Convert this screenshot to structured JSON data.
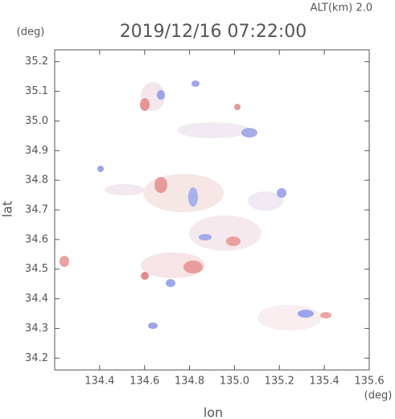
{
  "chart_data": {
    "type": "map",
    "title": "2019/12/16 07:22:00",
    "subtitle": "ALT(km) 2.0",
    "x_label": "lon",
    "y_label": "lat",
    "x_unit": "(deg)",
    "y_unit": "(deg)",
    "xlim": [
      134.2,
      135.6
    ],
    "ylim": [
      34.16,
      35.24
    ],
    "xticks": [
      134.4,
      134.6,
      134.8,
      {
        "value": 135,
        "label": "135.0"
      },
      135.2,
      135.4,
      135.6
    ],
    "yticks": [
      34.2,
      34.3,
      34.4,
      34.5,
      34.6,
      34.7,
      34.8,
      34.9,
      {
        "value": 35,
        "label": "35.0"
      },
      35.1,
      35.2
    ]
  }
}
